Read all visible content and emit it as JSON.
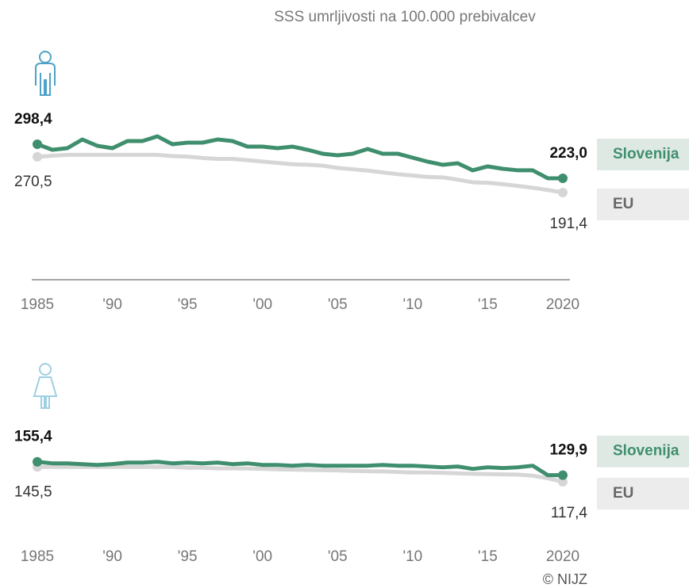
{
  "title": "SSS umrljivosti na 100.000 prebivalcev",
  "source": "© NIJZ",
  "chart_data": [
    {
      "type": "line",
      "xlim": [
        1985,
        2020
      ],
      "xticks": [
        1985,
        {
          "value": 1990,
          "label": "'90"
        },
        {
          "value": 1995,
          "label": "'95"
        },
        {
          "value": 2000,
          "label": "'00"
        },
        {
          "value": 2005,
          "label": "'05"
        },
        {
          "value": 2010,
          "label": "'10"
        },
        {
          "value": 2015,
          "label": "'15"
        },
        2020
      ],
      "ylim": [
        0,
        330
      ],
      "x": [
        1985,
        1986,
        1987,
        1988,
        1989,
        1990,
        1991,
        1992,
        1993,
        1994,
        1995,
        1996,
        1997,
        1998,
        1999,
        2000,
        2001,
        2002,
        2003,
        2004,
        2005,
        2006,
        2007,
        2008,
        2009,
        2010,
        2011,
        2012,
        2013,
        2014,
        2015,
        2016,
        2017,
        2018,
        2019,
        2020
      ],
      "series": [
        {
          "name": "Slovenija",
          "color": "#3f8f6e",
          "values": [
            298.4,
            286.1,
            289.6,
            308.9,
            294.9,
            289.6,
            305.4,
            305.4,
            315.9,
            298.4,
            301.9,
            301.9,
            308.9,
            305.4,
            293.1,
            293.1,
            289.6,
            293.1,
            286.1,
            277.4,
            273.9,
            277.4,
            287.9,
            277.4,
            277.4,
            268.6,
            259.8,
            252.8,
            256.3,
            240.6,
            249.3,
            244.0,
            240.6,
            240.6,
            223.0,
            223.0
          ],
          "value_labels": [
            "298,4",
            null,
            null,
            null,
            null,
            null,
            null,
            null,
            null,
            null,
            null,
            null,
            null,
            null,
            null,
            null,
            null,
            null,
            null,
            null,
            null,
            null,
            null,
            null,
            null,
            null,
            null,
            null,
            null,
            null,
            null,
            null,
            null,
            null,
            null,
            "223,0"
          ]
        },
        {
          "name": "EU",
          "color": "#d6d6d6",
          "values": [
            270.5,
            273,
            275,
            275,
            275,
            275,
            275,
            275,
            275,
            272,
            271,
            268,
            266,
            266,
            263,
            260,
            257,
            254,
            253,
            251,
            246,
            243,
            240,
            236,
            232,
            229,
            226,
            225,
            220,
            214,
            213,
            210,
            206,
            202,
            197,
            191.4
          ],
          "value_labels": [
            "270,5",
            null,
            null,
            null,
            null,
            null,
            null,
            null,
            null,
            null,
            null,
            null,
            null,
            null,
            null,
            null,
            null,
            null,
            null,
            null,
            null,
            null,
            null,
            null,
            null,
            null,
            null,
            null,
            null,
            null,
            null,
            null,
            null,
            null,
            null,
            "191,4"
          ]
        }
      ]
    },
    {
      "type": "line",
      "xlim": [
        1985,
        2020
      ],
      "xticks": [
        1985,
        {
          "value": 1990,
          "label": "'90"
        },
        {
          "value": 1995,
          "label": "'95"
        },
        {
          "value": 2000,
          "label": "'00"
        },
        {
          "value": 2005,
          "label": "'05"
        },
        {
          "value": 2010,
          "label": "'10"
        },
        {
          "value": 2015,
          "label": "'15"
        },
        2020
      ],
      "ylim": [
        0,
        170
      ],
      "x": [
        1985,
        1986,
        1987,
        1988,
        1989,
        1990,
        1991,
        1992,
        1993,
        1994,
        1995,
        1996,
        1997,
        1998,
        1999,
        2000,
        2001,
        2002,
        2003,
        2004,
        2005,
        2006,
        2007,
        2008,
        2009,
        2010,
        2011,
        2012,
        2013,
        2014,
        2015,
        2016,
        2017,
        2018,
        2019,
        2020
      ],
      "series": [
        {
          "name": "Slovenija",
          "color": "#3f8f6e",
          "values": [
            155.4,
            152.4,
            152.4,
            150.9,
            149.4,
            151.0,
            153.9,
            153.9,
            155.4,
            152.4,
            153.9,
            152.4,
            153.9,
            150.9,
            152.4,
            149.4,
            149.4,
            147.9,
            149.4,
            147.9,
            147.9,
            147.9,
            147.9,
            149.4,
            147.9,
            147.9,
            146.4,
            144.9,
            146.4,
            141.9,
            144.9,
            143.4,
            144.9,
            147.9,
            129.9,
            129.9
          ],
          "value_labels": [
            "155,4",
            null,
            null,
            null,
            null,
            null,
            null,
            null,
            null,
            null,
            null,
            null,
            null,
            null,
            null,
            null,
            null,
            null,
            null,
            null,
            null,
            null,
            null,
            null,
            null,
            null,
            null,
            null,
            null,
            null,
            null,
            null,
            null,
            null,
            null,
            "129,9"
          ]
        },
        {
          "name": "EU",
          "color": "#d6d6d6",
          "values": [
            145.5,
            145.5,
            145.5,
            145.5,
            145.5,
            145.5,
            145.5,
            145.5,
            145.5,
            145.5,
            144,
            144,
            143,
            143,
            142.5,
            142,
            141,
            140.5,
            140,
            139.5,
            139,
            138,
            137.5,
            137,
            136,
            135,
            135,
            134.5,
            133.5,
            132.5,
            132,
            131.5,
            131,
            129,
            124,
            117.4
          ],
          "value_labels": [
            "145,5",
            null,
            null,
            null,
            null,
            null,
            null,
            null,
            null,
            null,
            null,
            null,
            null,
            null,
            null,
            null,
            null,
            null,
            null,
            null,
            null,
            null,
            null,
            null,
            null,
            null,
            null,
            null,
            null,
            null,
            null,
            null,
            null,
            null,
            null,
            "117,4"
          ]
        }
      ]
    }
  ]
}
